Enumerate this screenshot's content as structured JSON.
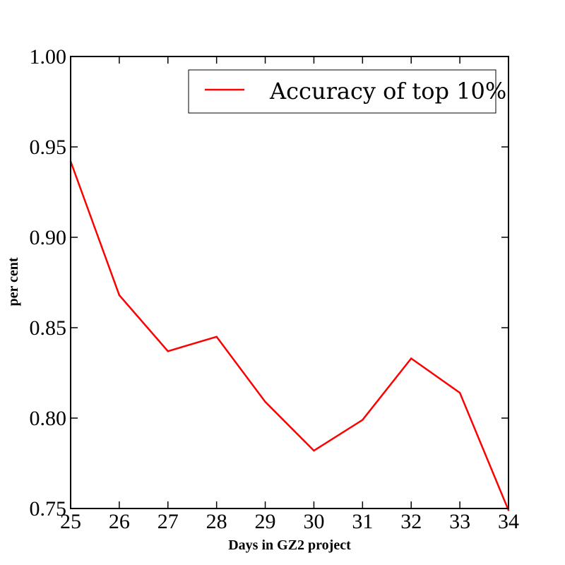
{
  "chart_data": {
    "type": "line",
    "xlabel": "Days in GZ2 project",
    "ylabel": "per cent",
    "xlim": [
      25,
      34
    ],
    "ylim": [
      0.75,
      1.0
    ],
    "x_ticks": [
      "25",
      "26",
      "27",
      "28",
      "29",
      "30",
      "31",
      "32",
      "33",
      "34"
    ],
    "y_ticks": [
      "0.75",
      "0.80",
      "0.85",
      "0.90",
      "0.95",
      "1.00"
    ],
    "grid": false,
    "legend_position": "top-right",
    "series": [
      {
        "name": "Accuracy of top 10%",
        "color": "#ff0000",
        "x": [
          25,
          26,
          27,
          28,
          29,
          30,
          31,
          32,
          33,
          34
        ],
        "y": [
          0.942,
          0.868,
          0.837,
          0.845,
          0.809,
          0.782,
          0.799,
          0.833,
          0.814,
          0.749
        ]
      }
    ]
  }
}
